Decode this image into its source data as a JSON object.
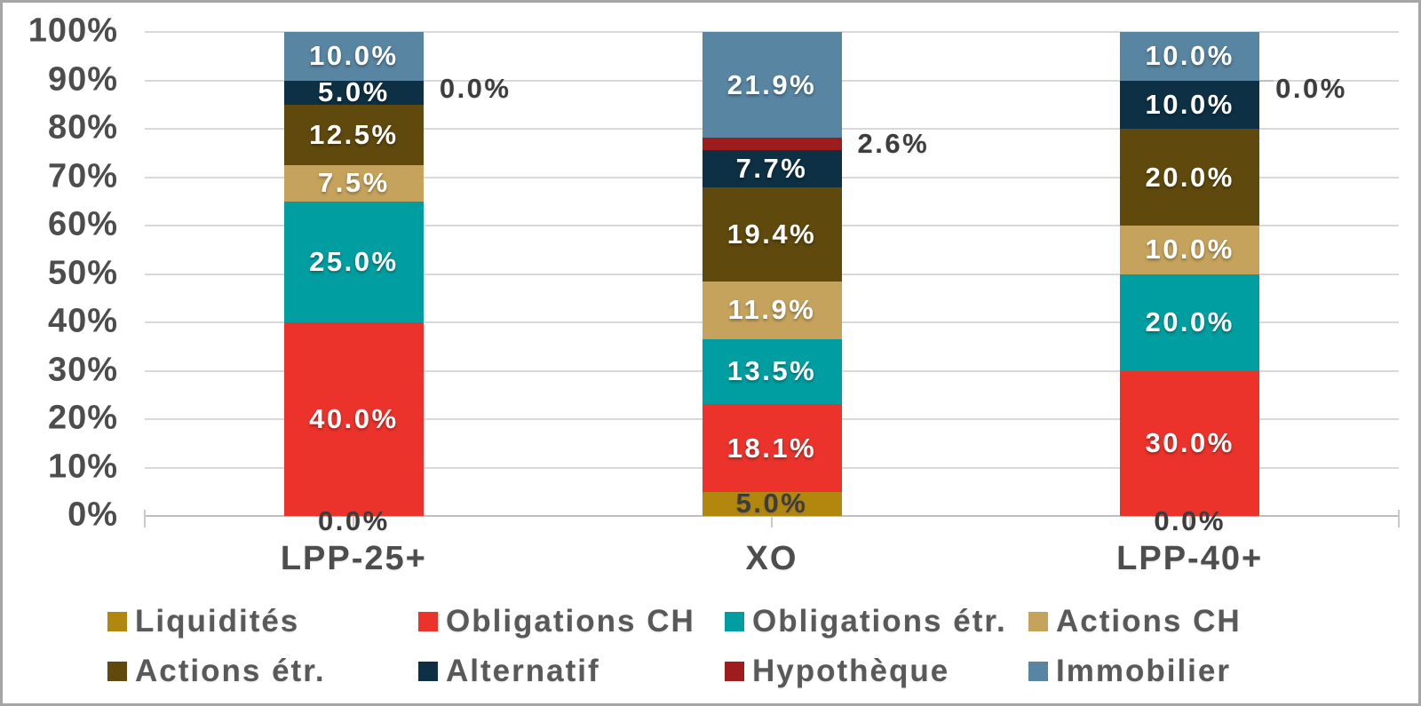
{
  "chart_data": {
    "type": "bar",
    "variant": "stacked-column-100",
    "title": "",
    "xlabel": "",
    "ylabel": "",
    "categories": [
      "LPP-25+",
      "XO",
      "LPP-40+"
    ],
    "y_axis": {
      "min": 0,
      "max": 100,
      "tick_step": 10,
      "ticks": [
        "0%",
        "10%",
        "20%",
        "30%",
        "40%",
        "50%",
        "60%",
        "70%",
        "80%",
        "90%",
        "100%"
      ],
      "grid": true
    },
    "legend_position": "bottom",
    "legend_rows": 2,
    "series": [
      {
        "id": "liquidites",
        "name": "Liquidités",
        "color": "#B2870E",
        "values": [
          0.0,
          5.0,
          0.0
        ],
        "labels": [
          "0.0%",
          "5.0%",
          "0.0%"
        ],
        "label_style": "inside-dark"
      },
      {
        "id": "obligations-ch",
        "name": "Obligations CH",
        "color": "#EB332C",
        "values": [
          40.0,
          18.1,
          30.0
        ],
        "labels": [
          "40.0%",
          "18.1%",
          "30.0%"
        ],
        "label_style": "inside-white"
      },
      {
        "id": "obligations-etr",
        "name": "Obligations étr.",
        "color": "#009EA0",
        "values": [
          25.0,
          13.5,
          20.0
        ],
        "labels": [
          "25.0%",
          "13.5%",
          "20.0%"
        ],
        "label_style": "inside-white"
      },
      {
        "id": "actions-ch",
        "name": "Actions CH",
        "color": "#C6A35C",
        "values": [
          7.5,
          11.9,
          10.0
        ],
        "labels": [
          "7.5%",
          "11.9%",
          "10.0%"
        ],
        "label_style": "inside-white"
      },
      {
        "id": "actions-etr",
        "name": "Actions étr.",
        "color": "#5F490D",
        "values": [
          12.5,
          19.4,
          20.0
        ],
        "labels": [
          "12.5%",
          "19.4%",
          "20.0%"
        ],
        "label_style": "inside-white"
      },
      {
        "id": "alternatif",
        "name": "Alternatif",
        "color": "#0D3044",
        "values": [
          5.0,
          7.7,
          10.0
        ],
        "labels": [
          "5.0%",
          "7.7%",
          "10.0%"
        ],
        "label_style": "inside-white"
      },
      {
        "id": "hypotheque",
        "name": "Hypothèque",
        "color": "#9E1B1E",
        "values": [
          0.0,
          2.6,
          0.0
        ],
        "labels": [
          "0.0%",
          "2.6%",
          "0.0%"
        ],
        "label_style": "outside-right",
        "leaders": [
          false,
          false,
          true
        ]
      },
      {
        "id": "immobilier",
        "name": "Immobilier",
        "color": "#5885A2",
        "values": [
          10.0,
          21.9,
          10.0
        ],
        "labels": [
          "10.0%",
          "21.9%",
          "10.0%"
        ],
        "label_style": "inside-white"
      }
    ],
    "style_colors": {
      "gridline": "#D9D9D9",
      "axis_line": "#BFBFBF",
      "axis_text": "#4D4D4D",
      "data_label_dark": "#3D3D3D",
      "legend_text": "#595959",
      "frame_border": "#A6A6A6",
      "background": "#FFFFFF"
    }
  }
}
